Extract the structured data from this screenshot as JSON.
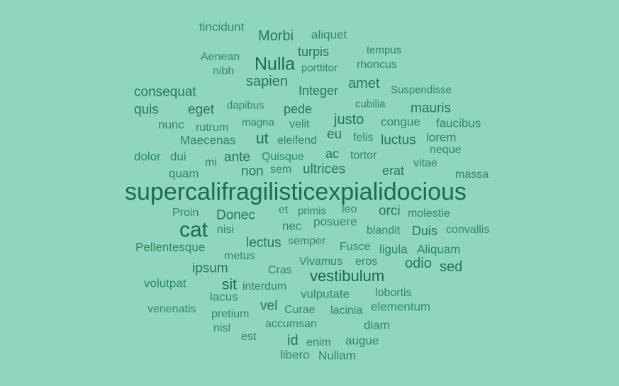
{
  "background_color": "#8fd5c0",
  "word_colors": {
    "dark": "#1f6b4a",
    "mid": "#237a52",
    "light": "#2f8a5e"
  },
  "words": [
    "tincidunt",
    "Morbi",
    "aliquet",
    "turpis",
    "tempus",
    "Aenean",
    "Nulla",
    "porttitor",
    "rhoncus",
    "nibh",
    "sapien",
    "amet",
    "consequat",
    "Integer",
    "Suspendisse",
    "quis",
    "eget",
    "dapibus",
    "pede",
    "cubilia",
    "mauris",
    "nunc",
    "rutrum",
    "magna",
    "velit",
    "justo",
    "congue",
    "faucibus",
    "Maecenas",
    "ut",
    "eleifend",
    "eu",
    "felis",
    "luctus",
    "lorem",
    "dolor",
    "dui",
    "ante",
    "Quisque",
    "ac",
    "tortor",
    "neque",
    "mi",
    "quam",
    "non",
    "sem",
    "ultrices",
    "erat",
    "vitae",
    "massa",
    "supercalifragilisticexpialidocious",
    "Proin",
    "Donec",
    "et",
    "primis",
    "leo",
    "orci",
    "molestie",
    "cat",
    "nisi",
    "nec",
    "posuere",
    "blandit",
    "Duis",
    "convallis",
    "lectus",
    "semper",
    "Pellentesque",
    "Fusce",
    "ligula",
    "Aliquam",
    "metus",
    "Vivamus",
    "eros",
    "odio",
    "sed",
    "ipsum",
    "Cras",
    "vestibulum",
    "volutpat",
    "sit",
    "interdum",
    "lacus",
    "vulputate",
    "lobortis",
    "vel",
    "venenatis",
    "Curae",
    "lacinia",
    "elementum",
    "pretium",
    "accumsan",
    "diam",
    "nisl",
    "est",
    "id",
    "augue",
    "enim",
    "libero",
    "Nullam"
  ]
}
